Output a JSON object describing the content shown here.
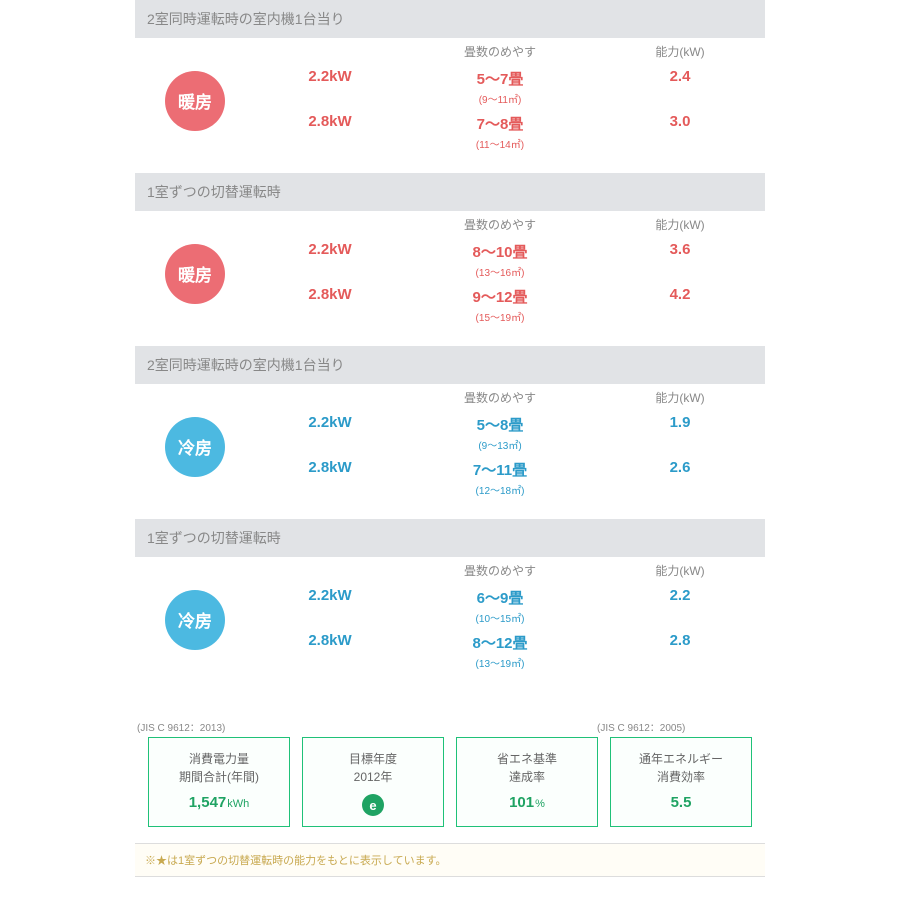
{
  "colors": {
    "heating_badge_bg": "#ec6d74",
    "cooling_badge_bg": "#4cb9e1",
    "heating_text": "#e45a5a",
    "cooling_text": "#2c9bc9",
    "header_bg": "#e1e3e6",
    "info_border": "#1fc178",
    "info_value": "#1fa363",
    "footnote_text": "#c8a950"
  },
  "column_headers": {
    "power": "",
    "tatami": "畳数のめやす",
    "capacity": "能力(kW)"
  },
  "sections": [
    {
      "title": "2室同時運転時の室内機1台当り",
      "badge_text": "暖房",
      "badge_kind": "heating",
      "rows": [
        {
          "power": "2.2kW",
          "tatami_main": "5～7畳",
          "tatami_sub": "(9～11㎡)",
          "capacity": "2.4"
        },
        {
          "power": "2.8kW",
          "tatami_main": "7～8畳",
          "tatami_sub": "(11～14㎡)",
          "capacity": "3.0"
        }
      ]
    },
    {
      "title": "1室ずつの切替運転時",
      "badge_text": "暖房",
      "badge_kind": "heating",
      "rows": [
        {
          "power": "2.2kW",
          "tatami_main": "8～10畳",
          "tatami_sub": "(13～16㎡)",
          "capacity": "3.6"
        },
        {
          "power": "2.8kW",
          "tatami_main": "9～12畳",
          "tatami_sub": "(15～19㎡)",
          "capacity": "4.2"
        }
      ]
    },
    {
      "title": "2室同時運転時の室内機1台当り",
      "badge_text": "冷房",
      "badge_kind": "cooling",
      "rows": [
        {
          "power": "2.2kW",
          "tatami_main": "5～8畳",
          "tatami_sub": "(9～13㎡)",
          "capacity": "1.9"
        },
        {
          "power": "2.8kW",
          "tatami_main": "7～11畳",
          "tatami_sub": "(12～18㎡)",
          "capacity": "2.6"
        }
      ]
    },
    {
      "title": "1室ずつの切替運転時",
      "badge_text": "冷房",
      "badge_kind": "cooling",
      "rows": [
        {
          "power": "2.2kW",
          "tatami_main": "6～9畳",
          "tatami_sub": "(10～15㎡)",
          "capacity": "2.2"
        },
        {
          "power": "2.8kW",
          "tatami_main": "8～12畳",
          "tatami_sub": "(13～19㎡)",
          "capacity": "2.8"
        }
      ]
    }
  ],
  "jis_labels": {
    "left": "(JIS C 9612：2013)",
    "right": "(JIS C 9612：2005)"
  },
  "info_cards": [
    {
      "line1": "消費電力量",
      "line2": "期間合計(年間)",
      "value": "1,547",
      "unit": "kWh",
      "kind": "value"
    },
    {
      "line1": "目標年度",
      "line2": "2012年",
      "value": "e",
      "kind": "icon"
    },
    {
      "line1": "省エネ基準",
      "line2": "達成率",
      "value": "101",
      "unit": "%",
      "kind": "value"
    },
    {
      "line1": "通年エネルギー",
      "line2": "消費効率",
      "value": "5.5",
      "unit": "",
      "kind": "value"
    }
  ],
  "footnote": "※★は1室ずつの切替運転時の能力をもとに表示しています。"
}
